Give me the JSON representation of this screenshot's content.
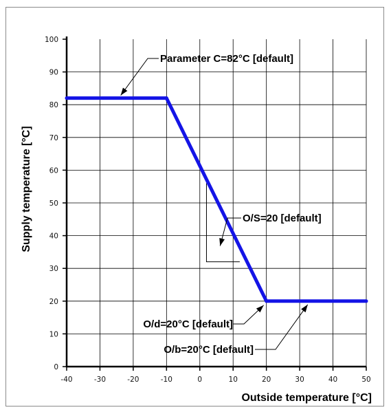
{
  "chart_data": {
    "type": "line",
    "title": "",
    "xlabel": "Outside temperature [°C]",
    "ylabel": "Supply temperature [°C]",
    "xlim": [
      -40,
      50
    ],
    "ylim": [
      0,
      100
    ],
    "xticks": [
      -40,
      -30,
      -20,
      -10,
      0,
      10,
      20,
      30,
      40,
      50
    ],
    "yticks": [
      0,
      10,
      20,
      30,
      40,
      50,
      60,
      70,
      80,
      90,
      100
    ],
    "grid": true,
    "series": [
      {
        "x": [
          -40,
          -10,
          20,
          50
        ],
        "y": [
          82,
          82,
          20,
          20
        ],
        "color": "#1414e6"
      }
    ],
    "annotations": [
      {
        "text": "Parameter C=82°C [default]",
        "point": [
          -25,
          82
        ]
      },
      {
        "text": "O/S=20 [default]",
        "point": [
          3,
          36
        ]
      },
      {
        "text": "O/d=20°C [default]",
        "point": [
          20,
          20
        ]
      },
      {
        "text": "O/b=20°C [default]",
        "point": [
          32,
          20
        ]
      }
    ]
  }
}
